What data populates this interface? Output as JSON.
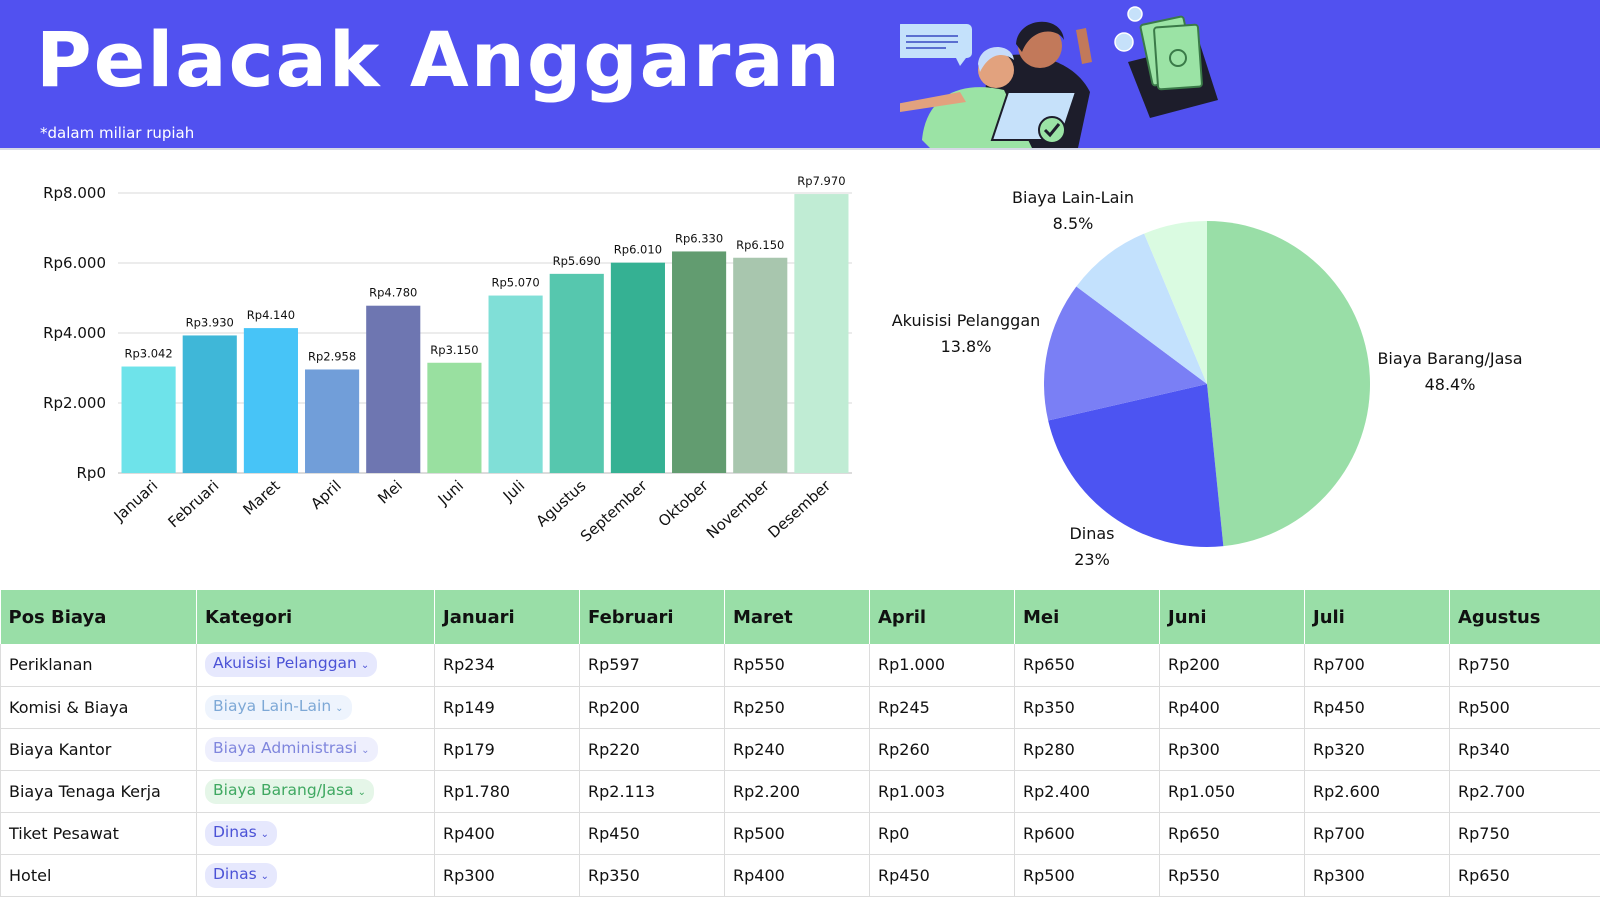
{
  "header": {
    "title": "Pelacak Anggaran",
    "subtitle": "*dalam miliar rupiah"
  },
  "chart_data": [
    {
      "type": "bar",
      "categories": [
        "Januari",
        "Februari",
        "Maret",
        "April",
        "Mei",
        "Juni",
        "Juli",
        "Agustus",
        "September",
        "Oktober",
        "November",
        "Desember"
      ],
      "values": [
        3042,
        3930,
        4140,
        2958,
        4780,
        3150,
        5070,
        5690,
        6010,
        6330,
        6150,
        7970
      ],
      "value_labels": [
        "Rp3.042",
        "Rp3.930",
        "Rp4.140",
        "Rp2.958",
        "Rp4.780",
        "Rp3.150",
        "Rp5.070",
        "Rp5.690",
        "Rp6.010",
        "Rp6.330",
        "Rp6.150",
        "Rp7.970"
      ],
      "colors": [
        "#6ee3ea",
        "#3fb7d8",
        "#47c4f7",
        "#719ed9",
        "#6e76b1",
        "#99e0a0",
        "#80dfd7",
        "#56c7ae",
        "#35b193",
        "#629c70",
        "#a8c6ae",
        "#c0ecd4"
      ],
      "y_ticks": [
        0,
        2000,
        4000,
        6000,
        8000
      ],
      "y_tick_labels": [
        "Rp0",
        "Rp2.000",
        "Rp4.000",
        "Rp6.000",
        "Rp8.000"
      ],
      "ylim": [
        0,
        8000
      ],
      "grid": true,
      "title": "",
      "xlabel": "",
      "ylabel": ""
    },
    {
      "type": "pie",
      "slices": [
        {
          "label": "Biaya Barang/Jasa",
          "percent_label": "48.4%",
          "value": 48.4,
          "color": "#99dea7"
        },
        {
          "label": "Dinas",
          "percent_label": "23%",
          "value": 23,
          "color": "#4c54f2"
        },
        {
          "label": "Akuisisi Pelanggan",
          "percent_label": "13.8%",
          "value": 13.8,
          "color": "#7a7ff5"
        },
        {
          "label": "Biaya Lain-Lain",
          "percent_label": "8.5%",
          "value": 8.5,
          "color": "#c3e1fd"
        },
        {
          "label": "",
          "percent_label": "",
          "value": 6.3,
          "color": "#dafbe1"
        }
      ]
    }
  ],
  "table": {
    "headers": [
      "Pos Biaya",
      "Kategori",
      "Januari",
      "Februari",
      "Maret",
      "April",
      "Mei",
      "Juni",
      "Juli",
      "Agustus"
    ],
    "rows": [
      {
        "item": "Periklanan",
        "category": "Akuisisi Pelanggan",
        "chip_bg": "#e6e8fd",
        "chip_fg": "#4b52d6",
        "values": [
          "Rp234",
          "Rp597",
          "Rp550",
          "Rp1.000",
          "Rp650",
          "Rp200",
          "Rp700",
          "Rp750"
        ]
      },
      {
        "item": "Komisi & Biaya",
        "category": "Biaya Lain-Lain",
        "chip_bg": "#eef4fd",
        "chip_fg": "#7da8d6",
        "values": [
          "Rp149",
          "Rp200",
          "Rp250",
          "Rp245",
          "Rp350",
          "Rp400",
          "Rp450",
          "Rp500"
        ]
      },
      {
        "item": "Biaya Kantor",
        "category": "Biaya Administrasi",
        "chip_bg": "#eeeffd",
        "chip_fg": "#7f86dd",
        "values": [
          "Rp179",
          "Rp220",
          "Rp240",
          "Rp260",
          "Rp280",
          "Rp300",
          "Rp320",
          "Rp340"
        ]
      },
      {
        "item": "Biaya Tenaga Kerja",
        "category": "Biaya Barang/Jasa",
        "chip_bg": "#e5f6e8",
        "chip_fg": "#3fa861",
        "values": [
          "Rp1.780",
          "Rp2.113",
          "Rp2.200",
          "Rp1.003",
          "Rp2.400",
          "Rp1.050",
          "Rp2.600",
          "Rp2.700"
        ]
      },
      {
        "item": "Tiket Pesawat",
        "category": "Dinas",
        "chip_bg": "#e6e8fd",
        "chip_fg": "#4b52d6",
        "values": [
          "Rp400",
          "Rp450",
          "Rp500",
          "Rp0",
          "Rp600",
          "Rp650",
          "Rp700",
          "Rp750"
        ]
      },
      {
        "item": "Hotel",
        "category": "Dinas",
        "chip_bg": "#e6e8fd",
        "chip_fg": "#4b52d6",
        "values": [
          "Rp300",
          "Rp350",
          "Rp400",
          "Rp450",
          "Rp500",
          "Rp550",
          "Rp300",
          "Rp650"
        ]
      }
    ]
  }
}
